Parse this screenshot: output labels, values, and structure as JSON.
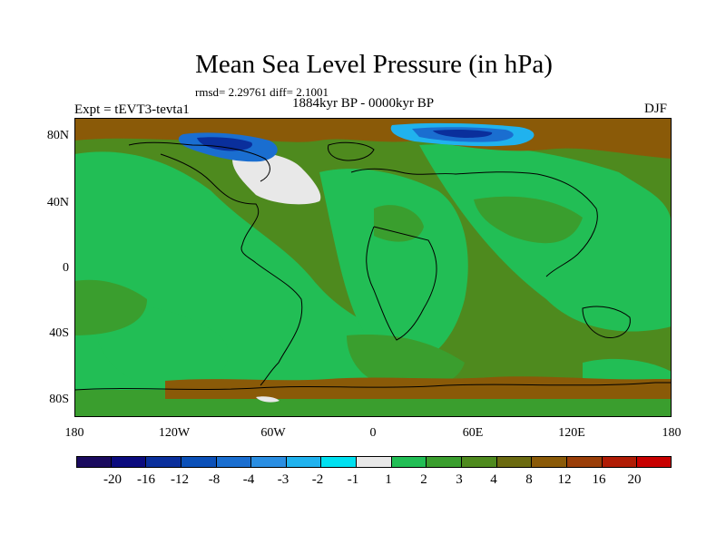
{
  "title": "Mean Sea Level Pressure (in hPa)",
  "stats": "rmsd= 2.29761 diff= 2.1001",
  "experiment": "Expt = tEVT3-tevta1",
  "period": "1884kyr BP - 0000kyr BP",
  "season": "DJF",
  "map": {
    "projection": "cylindrical equidistant",
    "lon_range": [
      -180,
      180
    ],
    "lat_range": [
      -90,
      90
    ],
    "y_ticks": [
      {
        "value": 80,
        "label": "80N"
      },
      {
        "value": 40,
        "label": "40N"
      },
      {
        "value": 0,
        "label": "0"
      },
      {
        "value": -40,
        "label": "40S"
      },
      {
        "value": -80,
        "label": "80S"
      }
    ],
    "x_ticks": [
      {
        "value": -180,
        "label": "180"
      },
      {
        "value": -120,
        "label": "120W"
      },
      {
        "value": -60,
        "label": "60W"
      },
      {
        "value": 0,
        "label": "0"
      },
      {
        "value": 60,
        "label": "60E"
      },
      {
        "value": 120,
        "label": "120E"
      },
      {
        "value": 180,
        "label": "180"
      }
    ]
  },
  "colorbar": {
    "colors": [
      "#1a0a5e",
      "#0b0b7e",
      "#0a2f9c",
      "#0b50b8",
      "#1a6ed0",
      "#2a8ee2",
      "#20b2ee",
      "#00e0f0",
      "#e8e8e8",
      "#22be55",
      "#3a9e2e",
      "#4e8a1e",
      "#6b6a10",
      "#8a5a08",
      "#9a3e08",
      "#b01c05",
      "#c80000"
    ],
    "labels": [
      "-20",
      "-16",
      "-12",
      "-8",
      "-4",
      "-3",
      "-2",
      "-1",
      "1",
      "2",
      "3",
      "4",
      "8",
      "12",
      "16",
      "20"
    ]
  },
  "field_colors": {
    "ocean_base": "#4e8a1e",
    "positive_2_3": "#22be55",
    "positive_3_4": "#3a9e2e",
    "positive_8_12": "#8a5a08",
    "negative_grey": "#e8e8e8",
    "negative_blue": "#1a6ed0",
    "negative_deep": "#0a2f9c",
    "negative_cyan": "#20b2ee",
    "coast": "#000000"
  }
}
